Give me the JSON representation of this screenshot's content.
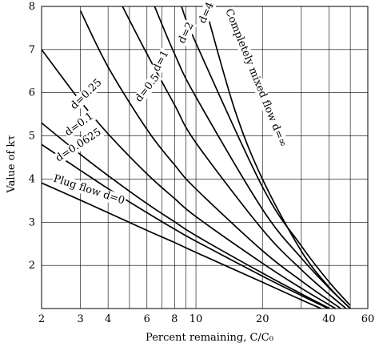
{
  "chart_data": {
    "type": "line",
    "title": "",
    "xlabel": "Percent remaining, C/C₀",
    "ylabel": "Value of kτ",
    "x_scale": "log",
    "xlim": [
      2,
      60
    ],
    "ylim": [
      1,
      8
    ],
    "x_ticks": [
      2,
      3,
      4,
      6,
      8,
      10,
      20,
      40,
      60
    ],
    "x_gridlines": [
      2,
      3,
      4,
      5,
      6,
      7,
      8,
      9,
      10,
      20,
      30,
      40,
      50,
      60
    ],
    "y_ticks": [
      2,
      3,
      4,
      5,
      6,
      7,
      8
    ],
    "grid": true,
    "legend": "none (curves labeled inline)",
    "series": [
      {
        "name": "Plug flow d=0",
        "points": [
          [
            2,
            3.91
          ],
          [
            3,
            3.51
          ],
          [
            4,
            3.22
          ],
          [
            6,
            2.81
          ],
          [
            8,
            2.53
          ],
          [
            10,
            2.3
          ],
          [
            20,
            1.61
          ],
          [
            30,
            1.2
          ],
          [
            40,
            0.92
          ],
          [
            50,
            0.69
          ]
        ]
      },
      {
        "name": "d=0.0625",
        "points": [
          [
            2,
            4.8
          ],
          [
            3,
            4.2
          ],
          [
            4,
            3.78
          ],
          [
            6,
            3.22
          ],
          [
            8,
            2.84
          ],
          [
            10,
            2.56
          ],
          [
            20,
            1.75
          ],
          [
            30,
            1.3
          ],
          [
            40,
            0.99
          ],
          [
            50,
            0.73
          ]
        ]
      },
      {
        "name": "d=0.1",
        "points": [
          [
            2,
            5.3
          ],
          [
            3,
            4.57
          ],
          [
            4,
            4.08
          ],
          [
            6,
            3.43
          ],
          [
            8,
            3.01
          ],
          [
            10,
            2.69
          ],
          [
            20,
            1.82
          ],
          [
            30,
            1.34
          ],
          [
            40,
            1.01
          ],
          [
            50,
            0.75
          ]
        ]
      },
      {
        "name": "d=0.25",
        "points": [
          [
            2,
            7.0
          ],
          [
            3,
            5.8
          ],
          [
            4,
            5.05
          ],
          [
            6,
            4.12
          ],
          [
            8,
            3.55
          ],
          [
            10,
            3.13
          ],
          [
            20,
            2.05
          ],
          [
            30,
            1.47
          ],
          [
            40,
            1.09
          ],
          [
            50,
            0.8
          ]
        ]
      },
      {
        "name": "d=0.5",
        "points": [
          [
            3,
            7.9
          ],
          [
            4,
            6.6
          ],
          [
            6,
            5.15
          ],
          [
            8,
            4.33
          ],
          [
            10,
            3.77
          ],
          [
            20,
            2.34
          ],
          [
            30,
            1.64
          ],
          [
            40,
            1.19
          ],
          [
            50,
            0.85
          ]
        ]
      },
      {
        "name": "d=1",
        "points": [
          [
            4.65,
            8.0
          ],
          [
            6,
            6.9
          ],
          [
            8,
            5.72
          ],
          [
            10,
            4.84
          ],
          [
            20,
            2.83
          ],
          [
            30,
            1.9
          ],
          [
            40,
            1.33
          ],
          [
            50,
            0.92
          ]
        ]
      },
      {
        "name": "d=2",
        "points": [
          [
            6.5,
            8.0
          ],
          [
            8,
            6.9
          ],
          [
            10,
            5.9
          ],
          [
            20,
            3.3
          ],
          [
            30,
            2.17
          ],
          [
            40,
            1.48
          ],
          [
            50,
            1.0
          ]
        ]
      },
      {
        "name": "d=4",
        "points": [
          [
            8.6,
            8.0
          ],
          [
            10,
            7.15
          ],
          [
            20,
            3.82
          ],
          [
            30,
            2.45
          ],
          [
            40,
            1.62
          ],
          [
            50,
            1.07
          ]
        ]
      },
      {
        "name": "Completely mixed flow d=∞",
        "points": [
          [
            11,
            8.0
          ],
          [
            15,
            5.6
          ],
          [
            20,
            4.0
          ],
          [
            30,
            2.33
          ],
          [
            40,
            1.5
          ],
          [
            50,
            1.0
          ]
        ]
      }
    ]
  }
}
